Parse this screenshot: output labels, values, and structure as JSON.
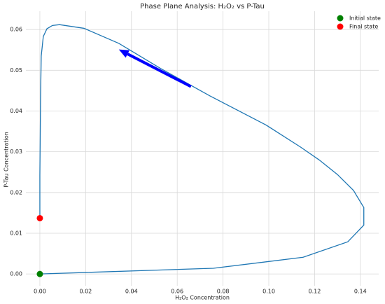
{
  "chart_data": {
    "type": "line",
    "title": "Phase Plane Analysis: H₂O₂ vs P-Tau",
    "xlabel": "H₂O₂ Concentration",
    "ylabel": "P-Tau Concentration",
    "xlim": [
      -0.0061,
      0.148
    ],
    "ylim": [
      -0.0029,
      0.0645
    ],
    "xticks": [
      {
        "value": 0,
        "label": "0.00"
      },
      0.02,
      0.04,
      0.06,
      0.08,
      {
        "value": 0.1,
        "label": "0.10"
      },
      0.12,
      0.14
    ],
    "yticks": [
      {
        "value": 0,
        "label": "0.00"
      },
      0.01,
      0.02,
      0.03,
      0.04,
      0.05,
      0.06
    ],
    "grid": true,
    "legend_position": "upper right",
    "line": {
      "color": "#1f77b4",
      "x": [
        0,
        0.0758,
        0.115,
        0.1345,
        0.1415,
        0.1415,
        0.137,
        0.13,
        0.122,
        0.114,
        0.0987,
        0.0743,
        0.0529,
        0.0345,
        0.0193,
        0.0086,
        0.0055,
        0.0031,
        0.0015,
        0.0006,
        0.0003,
        0,
        0
      ],
      "y": [
        0,
        0.0014,
        0.0041,
        0.0079,
        0.012,
        0.0163,
        0.0205,
        0.0244,
        0.028,
        0.0311,
        0.0366,
        0.0437,
        0.0504,
        0.0566,
        0.0603,
        0.0612,
        0.061,
        0.0602,
        0.0583,
        0.0535,
        0.0431,
        0.0242,
        0.0137
      ]
    },
    "arrows": [
      {
        "color": "#0000ff",
        "x": [
          0.066,
          0.0345
        ],
        "y": [
          0.046,
          0.0551
        ]
      }
    ],
    "points": [
      {
        "name": "Initial state",
        "color": "#008000",
        "x": 0,
        "y": 0
      },
      {
        "name": "Final state",
        "color": "#ff0000",
        "x": 0,
        "y": 0.0137
      }
    ]
  }
}
